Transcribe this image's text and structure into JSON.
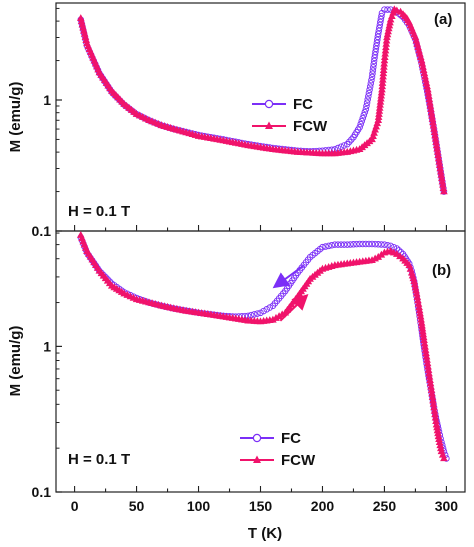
{
  "chart_data": [
    {
      "type": "scatter",
      "panel_label": "(a)",
      "annotation": "H = 0.1 T",
      "ylabel": "M (emu/g)",
      "yscale": "log",
      "ylim": [
        0.1,
        5.5
      ],
      "xlim": [
        -15,
        315
      ],
      "y_tick_labels": [
        {
          "value": 1,
          "label": "1"
        },
        {
          "value": 0.1,
          "label": "0.1"
        }
      ],
      "legend_position": "center-right",
      "series": [
        {
          "name": "FC",
          "color": "#7b2ff7",
          "marker": "open-circle",
          "x": [
            5,
            10,
            20,
            30,
            40,
            50,
            60,
            70,
            80,
            100,
            120,
            140,
            160,
            180,
            190,
            200,
            210,
            220,
            225,
            230,
            235,
            240,
            242,
            245,
            248,
            250,
            255,
            258,
            260,
            265,
            270,
            275,
            280,
            285,
            290,
            295,
            298
          ],
          "y": [
            4.1,
            2.6,
            1.6,
            1.15,
            0.92,
            0.78,
            0.7,
            0.64,
            0.6,
            0.54,
            0.5,
            0.46,
            0.43,
            0.41,
            0.405,
            0.41,
            0.42,
            0.46,
            0.52,
            0.62,
            0.85,
            1.5,
            2.1,
            3.2,
            4.6,
            4.9,
            4.9,
            4.8,
            4.7,
            4.3,
            3.7,
            2.9,
            1.9,
            1.1,
            0.6,
            0.3,
            0.2
          ]
        },
        {
          "name": "FCW",
          "color": "#f0136b",
          "marker": "filled-triangle",
          "x": [
            5,
            10,
            20,
            30,
            40,
            50,
            60,
            70,
            80,
            100,
            120,
            140,
            160,
            180,
            200,
            210,
            220,
            230,
            240,
            245,
            248,
            250,
            252,
            255,
            258,
            260,
            263,
            265,
            268,
            270,
            275,
            280,
            285,
            290,
            295,
            298
          ],
          "y": [
            4.2,
            2.7,
            1.62,
            1.17,
            0.93,
            0.78,
            0.7,
            0.64,
            0.6,
            0.53,
            0.49,
            0.45,
            0.42,
            0.4,
            0.39,
            0.39,
            0.4,
            0.42,
            0.5,
            0.7,
            1.2,
            2.0,
            3.0,
            4.1,
            4.9,
            4.8,
            4.7,
            4.5,
            4.2,
            3.9,
            3.0,
            2.0,
            1.2,
            0.6,
            0.3,
            0.2
          ]
        }
      ]
    },
    {
      "type": "scatter",
      "panel_label": "(b)",
      "annotation": "H = 0.1 T",
      "xlabel": "T (K)",
      "ylabel": "M (emu/g)",
      "yscale": "log",
      "ylim": [
        0.1,
        6.2
      ],
      "xlim": [
        -15,
        315
      ],
      "x_ticks": [
        0,
        50,
        100,
        150,
        200,
        250,
        300
      ],
      "y_tick_labels": [
        {
          "value": 1,
          "label": "1"
        },
        {
          "value": 0.1,
          "label": "0.1"
        }
      ],
      "legend_position": "bottom-center",
      "arrows": [
        {
          "direction": "cooling",
          "color": "#7b2ff7",
          "from": [
            185,
            3.6
          ],
          "to": [
            165,
            2.7
          ]
        },
        {
          "direction": "warming",
          "color": "#f0136b",
          "from": [
            166,
            1.5
          ],
          "to": [
            184,
            2.1
          ]
        }
      ],
      "series": [
        {
          "name": "FC",
          "color": "#7b2ff7",
          "marker": "open-circle",
          "x": [
            300,
            298,
            296,
            294,
            292,
            290,
            288,
            286,
            284,
            282,
            280,
            278,
            276,
            274,
            272,
            270,
            265,
            260,
            255,
            250,
            240,
            230,
            220,
            210,
            200,
            190,
            180,
            170,
            160,
            150,
            140,
            130,
            120,
            110,
            100,
            90,
            80,
            70,
            60,
            50,
            40,
            30,
            20,
            10,
            5
          ],
          "y": [
            0.17,
            0.19,
            0.22,
            0.26,
            0.31,
            0.38,
            0.48,
            0.6,
            0.76,
            0.98,
            1.3,
            1.7,
            2.2,
            2.8,
            3.3,
            3.7,
            4.3,
            4.7,
            4.9,
            5.0,
            5.05,
            5.05,
            5.0,
            5.0,
            4.8,
            4.1,
            3.2,
            2.4,
            1.9,
            1.7,
            1.62,
            1.6,
            1.62,
            1.66,
            1.7,
            1.76,
            1.82,
            1.9,
            2.0,
            2.15,
            2.35,
            2.7,
            3.3,
            4.4,
            5.6
          ]
        },
        {
          "name": "FCW",
          "color": "#f0136b",
          "marker": "filled-triangle",
          "x": [
            5,
            10,
            20,
            30,
            40,
            50,
            60,
            70,
            80,
            90,
            100,
            110,
            120,
            130,
            140,
            150,
            160,
            170,
            180,
            190,
            200,
            210,
            220,
            230,
            240,
            245,
            250,
            255,
            260,
            265,
            270,
            272,
            274,
            276,
            278,
            280,
            282,
            284,
            286,
            288,
            290,
            292,
            294,
            296,
            298
          ],
          "y": [
            5.8,
            4.5,
            3.3,
            2.6,
            2.3,
            2.1,
            2.0,
            1.9,
            1.82,
            1.75,
            1.7,
            1.65,
            1.6,
            1.55,
            1.5,
            1.48,
            1.52,
            1.7,
            2.2,
            2.9,
            3.4,
            3.6,
            3.7,
            3.8,
            3.9,
            4.1,
            4.4,
            4.5,
            4.3,
            4.0,
            3.6,
            3.2,
            2.8,
            2.3,
            1.85,
            1.45,
            1.1,
            0.85,
            0.65,
            0.5,
            0.38,
            0.29,
            0.23,
            0.19,
            0.17
          ]
        }
      ]
    }
  ]
}
